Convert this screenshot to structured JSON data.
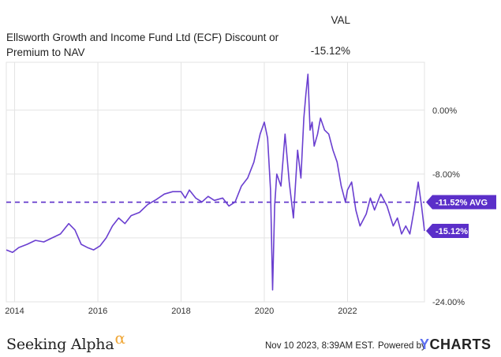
{
  "header": {
    "title": "Ellsworth Growth and Income Fund Ltd (ECF) Discount or Premium to NAV",
    "val_label": "VAL",
    "val_value": "-15.12%"
  },
  "footer": {
    "brand": "Seeking Alpha",
    "brand_symbol": "α",
    "timestamp": "Nov 10 2023, 8:39AM EST.",
    "powered_by": "Powered by",
    "provider": "YCHARTS",
    "provider_first": "Y",
    "provider_rest": "CHARTS"
  },
  "chart_data": {
    "type": "line",
    "title": "Ellsworth Growth and Income Fund Ltd (ECF) Discount or Premium to NAV",
    "xlabel": "",
    "ylabel": "",
    "xlim": [
      2013.8,
      2023.85
    ],
    "ylim": [
      -24.0,
      6.0
    ],
    "x_ticks": [
      2014,
      2016,
      2018,
      2020,
      2022
    ],
    "x_tick_labels": [
      "2014",
      "2016",
      "2018",
      "2020",
      "2022"
    ],
    "y_ticks": [
      0,
      -8,
      -16,
      -24
    ],
    "y_tick_labels": [
      "0.00%",
      "-8.00%",
      "",
      "-24.00%"
    ],
    "grid": true,
    "colors": {
      "line": "#6a3fd0",
      "grid": "#e3e3e3",
      "avg_line": "#5b2fc9",
      "label_bg": "#5b2fc9",
      "label_text": "#ffffff"
    },
    "average": {
      "value": -11.52,
      "label": "-11.52% AVG"
    },
    "last": {
      "value": -15.12,
      "label": "-15.12%"
    },
    "series": [
      {
        "x": [
          2013.8,
          2013.95,
          2014.1,
          2014.3,
          2014.5,
          2014.7,
          2014.9,
          2015.1,
          2015.3,
          2015.45,
          2015.6,
          2015.75,
          2015.9,
          2016.05,
          2016.2,
          2016.35,
          2016.5,
          2016.65,
          2016.8,
          2017.0,
          2017.2,
          2017.4,
          2017.6,
          2017.8,
          2018.0,
          2018.1,
          2018.2,
          2018.35,
          2018.5,
          2018.65,
          2018.8,
          2019.0,
          2019.15,
          2019.3,
          2019.45,
          2019.6,
          2019.75,
          2019.9,
          2020.0,
          2020.08,
          2020.15,
          2020.2,
          2020.25,
          2020.3,
          2020.4,
          2020.5,
          2020.6,
          2020.7,
          2020.8,
          2020.88,
          2020.95,
          2021.0,
          2021.05,
          2021.1,
          2021.15,
          2021.2,
          2021.28,
          2021.35,
          2021.45,
          2021.55,
          2021.65,
          2021.75,
          2021.85,
          2021.95,
          2022.0,
          2022.1,
          2022.2,
          2022.3,
          2022.45,
          2022.55,
          2022.65,
          2022.8,
          2022.95,
          2023.1,
          2023.2,
          2023.3,
          2023.4,
          2023.5,
          2023.6,
          2023.7,
          2023.78,
          2023.85
        ],
        "y": [
          -17.5,
          -17.8,
          -17.2,
          -16.8,
          -16.3,
          -16.5,
          -16.0,
          -15.5,
          -14.2,
          -15.0,
          -16.8,
          -17.2,
          -17.5,
          -17.0,
          -16.0,
          -14.5,
          -13.5,
          -14.2,
          -13.2,
          -12.8,
          -11.8,
          -11.2,
          -10.5,
          -10.2,
          -10.2,
          -11.0,
          -10.0,
          -11.0,
          -11.5,
          -10.8,
          -11.3,
          -11.0,
          -12.0,
          -11.5,
          -9.5,
          -8.5,
          -6.5,
          -3.0,
          -1.5,
          -3.5,
          -10.0,
          -22.5,
          -12.0,
          -8.0,
          -9.5,
          -3.0,
          -9.0,
          -13.5,
          -5.0,
          -8.5,
          -1.0,
          2.0,
          4.5,
          -2.5,
          -1.5,
          -4.5,
          -3.0,
          -1.0,
          -2.5,
          -3.0,
          -5.0,
          -6.5,
          -9.5,
          -11.5,
          -10.0,
          -9.0,
          -12.5,
          -14.5,
          -13.0,
          -11.0,
          -12.5,
          -10.5,
          -12.0,
          -14.5,
          -13.5,
          -15.5,
          -14.5,
          -15.5,
          -12.5,
          -9.0,
          -12.0,
          -15.12
        ]
      }
    ]
  }
}
